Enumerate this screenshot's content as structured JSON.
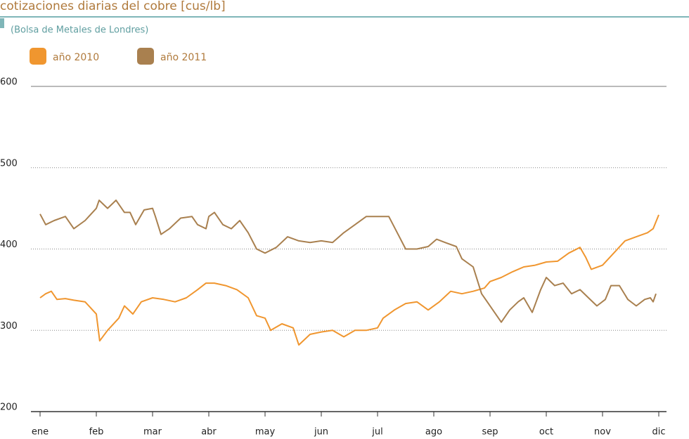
{
  "chart_data": {
    "type": "line",
    "title": "cotizaciones diarias del cobre [cus/lb]",
    "subtitle": "(Bolsa de Metales de Londres)",
    "xlim": [
      0,
      11
    ],
    "ylim": [
      200,
      600
    ],
    "xticks": [
      {
        "value": 0,
        "label": "ene"
      },
      {
        "value": 1,
        "label": "feb"
      },
      {
        "value": 2,
        "label": "mar"
      },
      {
        "value": 3,
        "label": "abr"
      },
      {
        "value": 4,
        "label": "may"
      },
      {
        "value": 5,
        "label": "jun"
      },
      {
        "value": 6,
        "label": "jul"
      },
      {
        "value": 7,
        "label": "ago"
      },
      {
        "value": 8,
        "label": "sep"
      },
      {
        "value": 9,
        "label": "oct"
      },
      {
        "value": 10,
        "label": "nov"
      },
      {
        "value": 11,
        "label": "dic"
      }
    ],
    "yticks": [
      200,
      300,
      400,
      500,
      600
    ],
    "grid": true,
    "series": [
      {
        "name": "año 2010",
        "color": "#f0962f",
        "x": [
          0,
          0.1,
          0.2,
          0.3,
          0.45,
          0.6,
          0.8,
          1.0,
          1.06,
          1.2,
          1.4,
          1.5,
          1.65,
          1.8,
          2.0,
          2.2,
          2.4,
          2.6,
          2.8,
          2.95,
          3.1,
          3.3,
          3.5,
          3.7,
          3.85,
          4.0,
          4.1,
          4.3,
          4.5,
          4.6,
          4.8,
          5.0,
          5.2,
          5.4,
          5.6,
          5.8,
          6.0,
          6.1,
          6.3,
          6.5,
          6.7,
          6.9,
          7.1,
          7.3,
          7.5,
          7.7,
          7.9,
          8.0,
          8.2,
          8.4,
          8.6,
          8.8,
          9.0,
          9.2,
          9.4,
          9.6,
          9.7,
          9.8,
          10.0,
          10.2,
          10.4,
          10.6,
          10.8,
          10.9,
          11.0
        ],
        "values": [
          340,
          345,
          348,
          338,
          339,
          337,
          335,
          320,
          287,
          300,
          315,
          330,
          320,
          335,
          340,
          338,
          335,
          340,
          350,
          358,
          358,
          355,
          350,
          340,
          318,
          315,
          300,
          308,
          303,
          282,
          295,
          298,
          300,
          292,
          300,
          300,
          303,
          315,
          325,
          333,
          335,
          325,
          335,
          348,
          345,
          348,
          352,
          360,
          365,
          372,
          378,
          380,
          384,
          385,
          395,
          402,
          390,
          375,
          380,
          395,
          410,
          415,
          420,
          425,
          442
        ]
      },
      {
        "name": "año 2011",
        "color": "#a9804f",
        "x": [
          0,
          0.1,
          0.25,
          0.45,
          0.6,
          0.8,
          1.0,
          1.05,
          1.2,
          1.35,
          1.5,
          1.6,
          1.7,
          1.85,
          2.0,
          2.05,
          2.15,
          2.3,
          2.5,
          2.7,
          2.8,
          2.95,
          3.0,
          3.1,
          3.25,
          3.4,
          3.55,
          3.7,
          3.85,
          4.0,
          4.2,
          4.4,
          4.6,
          4.8,
          5.0,
          5.2,
          5.4,
          5.6,
          5.8,
          6.0,
          6.2,
          6.35,
          6.5,
          6.7,
          6.9,
          7.05,
          7.2,
          7.4,
          7.5,
          7.7,
          7.85,
          7.95,
          8.1,
          8.2,
          8.35,
          8.5,
          8.6,
          8.75,
          8.9,
          9.0,
          9.15,
          9.3,
          9.45,
          9.6,
          9.75,
          9.9,
          10.05,
          10.15,
          10.3,
          10.45,
          10.6,
          10.75,
          10.85,
          10.9,
          10.95
        ],
        "values": [
          443,
          430,
          435,
          440,
          425,
          435,
          450,
          460,
          450,
          460,
          445,
          445,
          430,
          448,
          450,
          440,
          418,
          425,
          438,
          440,
          430,
          425,
          440,
          445,
          430,
          425,
          435,
          420,
          400,
          395,
          402,
          415,
          410,
          408,
          410,
          408,
          420,
          430,
          440,
          440,
          440,
          420,
          400,
          400,
          403,
          412,
          408,
          403,
          388,
          378,
          345,
          335,
          320,
          310,
          325,
          335,
          340,
          322,
          350,
          365,
          355,
          358,
          345,
          350,
          340,
          330,
          338,
          355,
          355,
          338,
          330,
          338,
          340,
          335,
          345
        ]
      }
    ]
  }
}
